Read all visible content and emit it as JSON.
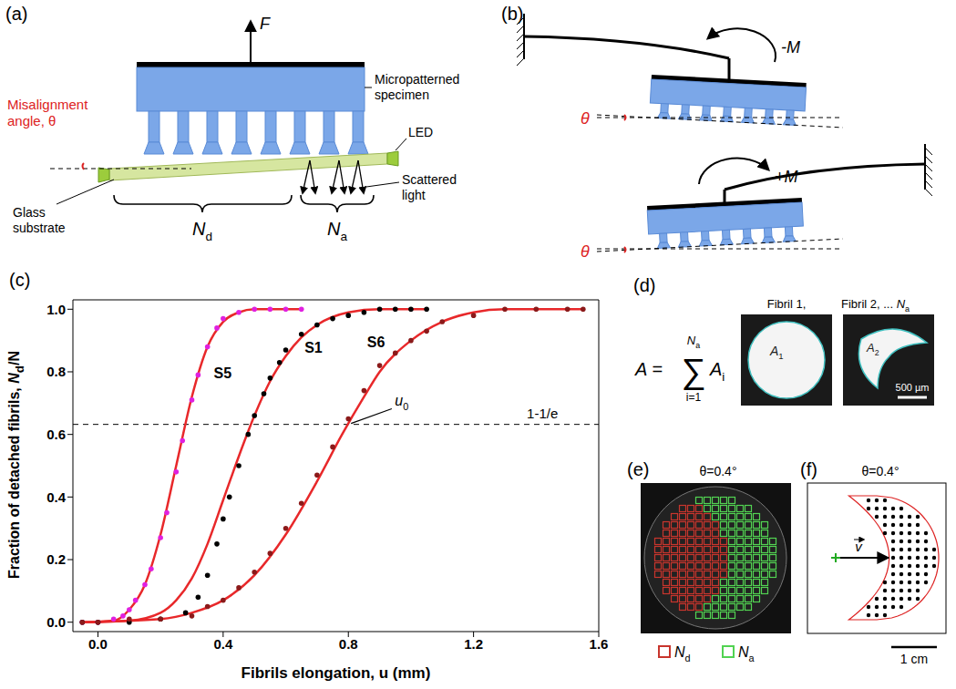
{
  "figure": {
    "a": {
      "letter": "(a)",
      "force": "F",
      "specimen": "Micropatterned specimen",
      "misalignment": "Misalignment angle, θ",
      "led": "LED",
      "substrate": "Glass substrate",
      "scattered": "Scattered light",
      "detached": {
        "base": "N",
        "sub": "d"
      },
      "attached": {
        "base": "N",
        "sub": "a"
      }
    },
    "b": {
      "letter": "(b)",
      "moment_top": "-M",
      "moment_bottom": "+M",
      "angle": "θ"
    },
    "d": {
      "letter": "(d)",
      "formula": {
        "lhs": "A =",
        "sum": "∑",
        "upper": {
          "base": "N",
          "sub": "a"
        },
        "lower": "i=1",
        "term": {
          "base": "A",
          "sub": "i"
        }
      },
      "fibrils": [
        {
          "title": "Fibril 1,",
          "area": {
            "base": "A",
            "sub": "1"
          }
        },
        {
          "title": "Fibril 2, ...",
          "title_symbol": {
            "base": "N",
            "sub": "a"
          },
          "area": {
            "base": "A",
            "sub": "2"
          }
        }
      ],
      "scale_bar": "500 µm"
    },
    "e": {
      "letter": "(e)",
      "title": "θ=0.4°",
      "legend": [
        {
          "symbol": {
            "base": "N",
            "sub": "d"
          },
          "color": "#c8352d"
        },
        {
          "symbol": {
            "base": "N",
            "sub": "a"
          },
          "color": "#52d352"
        }
      ]
    },
    "f": {
      "letter": "(f)",
      "title": "θ=0.4°",
      "vector": "v",
      "scale_bar": "1 cm"
    }
  },
  "chart_data": {
    "type": "scatter",
    "letter": "(c)",
    "x_label": "Fibrils elongation, u (mm)",
    "y_label": {
      "text": "Fraction of detached fibrils, ",
      "base": "N",
      "sub": "d",
      "suffix": "/N"
    },
    "xlim": [
      -0.08,
      1.6
    ],
    "xticks": [
      {
        "value": 0,
        "label": "0.0"
      },
      {
        "value": 0.4,
        "label": "0.4"
      },
      {
        "value": 0.8,
        "label": "0.8"
      },
      {
        "value": 1.2,
        "label": "1.2"
      },
      {
        "value": 1.6,
        "label": "1.6"
      }
    ],
    "ylim": [
      -0.03,
      1.03
    ],
    "yticks": [
      {
        "value": 0,
        "label": "0.0"
      },
      {
        "value": 0.2,
        "label": "0.2"
      },
      {
        "value": 0.4,
        "label": "0.4"
      },
      {
        "value": 0.6,
        "label": "0.6"
      },
      {
        "value": 0.8,
        "label": "0.8"
      },
      {
        "value": 1,
        "label": "1.0"
      }
    ],
    "series": [
      {
        "name": "S5",
        "color": "#e020e0",
        "marker": "circle",
        "x": [
          -0.05,
          0,
          0.05,
          0.08,
          0.1,
          0.12,
          0.15,
          0.17,
          0.2,
          0.22,
          0.25,
          0.27,
          0.3,
          0.32,
          0.35,
          0.38,
          0.4,
          0.45,
          0.5,
          0.55,
          0.6,
          0.65
        ],
        "values": [
          0,
          0,
          0.01,
          0.02,
          0.04,
          0.07,
          0.12,
          0.17,
          0.27,
          0.35,
          0.48,
          0.58,
          0.71,
          0.79,
          0.88,
          0.94,
          0.97,
          0.99,
          1,
          1,
          1,
          1
        ],
        "fit": {
          "color": "#e8282a",
          "line_style": "solid",
          "x": [
            -0.05,
            0.05,
            0.1,
            0.15,
            0.2,
            0.25,
            0.3,
            0.35,
            0.4,
            0.45,
            0.5,
            0.65
          ],
          "values": [
            0,
            0.005,
            0.04,
            0.12,
            0.28,
            0.5,
            0.72,
            0.88,
            0.96,
            0.99,
            1,
            1
          ]
        }
      },
      {
        "name": "S1",
        "color": "#000000",
        "marker": "circle",
        "x": [
          -0.05,
          0,
          0.1,
          0.2,
          0.28,
          0.32,
          0.35,
          0.38,
          0.4,
          0.42,
          0.45,
          0.48,
          0.5,
          0.53,
          0.55,
          0.58,
          0.6,
          0.65,
          0.7,
          0.75,
          0.8,
          0.85,
          0.9,
          0.95,
          1.0,
          1.05
        ],
        "values": [
          0,
          0,
          0,
          0.01,
          0.03,
          0.08,
          0.15,
          0.25,
          0.33,
          0.4,
          0.5,
          0.6,
          0.66,
          0.73,
          0.78,
          0.83,
          0.87,
          0.92,
          0.95,
          0.97,
          0.98,
          0.99,
          1,
          1,
          1,
          1
        ],
        "fit": {
          "color": "#e8282a",
          "line_style": "solid",
          "x": [
            -0.05,
            0.1,
            0.2,
            0.25,
            0.3,
            0.35,
            0.4,
            0.45,
            0.5,
            0.55,
            0.6,
            0.65,
            0.7,
            0.8,
            0.9,
            1.05
          ],
          "values": [
            0,
            0.005,
            0.03,
            0.07,
            0.14,
            0.25,
            0.39,
            0.53,
            0.66,
            0.77,
            0.85,
            0.91,
            0.95,
            0.99,
            1,
            1
          ]
        }
      },
      {
        "name": "S6",
        "color": "#8b1a1a",
        "marker": "circle",
        "x": [
          -0.05,
          0,
          0.1,
          0.2,
          0.3,
          0.35,
          0.4,
          0.45,
          0.5,
          0.55,
          0.6,
          0.65,
          0.7,
          0.75,
          0.8,
          0.85,
          0.9,
          0.95,
          1.0,
          1.05,
          1.1,
          1.2,
          1.3,
          1.4,
          1.5,
          1.55
        ],
        "values": [
          0,
          0,
          0.01,
          0.01,
          0.02,
          0.05,
          0.07,
          0.11,
          0.16,
          0.22,
          0.3,
          0.38,
          0.47,
          0.56,
          0.65,
          0.74,
          0.82,
          0.86,
          0.9,
          0.93,
          0.96,
          0.98,
          1,
          1,
          1,
          1
        ],
        "fit": {
          "color": "#e8282a",
          "line_style": "solid",
          "x": [
            -0.05,
            0.2,
            0.3,
            0.4,
            0.5,
            0.6,
            0.7,
            0.78,
            0.85,
            0.9,
            1.0,
            1.1,
            1.2,
            1.3,
            1.4,
            1.55
          ],
          "values": [
            0,
            0.01,
            0.03,
            0.07,
            0.15,
            0.28,
            0.45,
            0.6,
            0.72,
            0.8,
            0.9,
            0.96,
            0.99,
            1,
            1,
            1
          ]
        }
      }
    ],
    "reference": {
      "value": 0.632,
      "label": "1-1/e",
      "line_style": "dashed"
    },
    "marked_point": {
      "base": "u",
      "sub": "0",
      "series": "S6"
    }
  }
}
